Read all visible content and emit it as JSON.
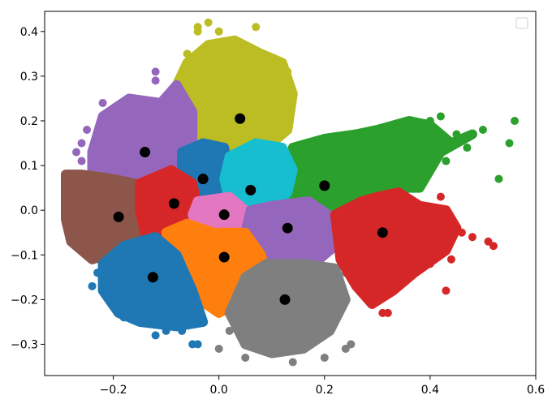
{
  "chart_data": {
    "type": "scatter",
    "title": "",
    "xlabel": "",
    "ylabel": "",
    "xlim": [
      -0.33,
      0.6
    ],
    "ylim": [
      -0.37,
      0.445
    ],
    "xticks": [
      -0.2,
      0.0,
      0.2,
      0.4,
      0.6
    ],
    "yticks": [
      -0.3,
      -0.2,
      -0.1,
      0.0,
      0.1,
      0.2,
      0.3,
      0.4
    ],
    "xtick_labels": [
      "−0.2",
      "0.0",
      "0.2",
      "0.4",
      "0.6"
    ],
    "ytick_labels": [
      "−0.3",
      "−0.2",
      "−0.1",
      "0.0",
      "0.1",
      "0.2",
      "0.3",
      "0.4"
    ],
    "grid": false,
    "legend": {
      "placement": "top-right",
      "entries": []
    },
    "centroid_color": "#000000",
    "clusters": [
      {
        "color": "#bcbd22",
        "centroid": [
          0.04,
          0.205
        ],
        "region": [
          [
            -0.08,
            0.28
          ],
          [
            -0.06,
            0.33
          ],
          [
            -0.02,
            0.37
          ],
          [
            0.03,
            0.38
          ],
          [
            0.08,
            0.35
          ],
          [
            0.12,
            0.33
          ],
          [
            0.14,
            0.26
          ],
          [
            0.13,
            0.18
          ],
          [
            0.09,
            0.14
          ],
          [
            0.03,
            0.13
          ],
          [
            -0.03,
            0.15
          ],
          [
            -0.08,
            0.21
          ]
        ],
        "outliers": [
          [
            -0.04,
            0.41
          ],
          [
            -0.04,
            0.4
          ],
          [
            -0.02,
            0.42
          ],
          [
            0.0,
            0.4
          ],
          [
            0.07,
            0.41
          ],
          [
            0.08,
            0.34
          ],
          [
            0.12,
            0.32
          ],
          [
            0.13,
            0.31
          ],
          [
            -0.06,
            0.35
          ],
          [
            -0.09,
            0.27
          ],
          [
            0.11,
            0.29
          ],
          [
            0.05,
            0.36
          ]
        ]
      },
      {
        "color": "#9467bd",
        "centroid": [
          -0.14,
          0.13
        ],
        "region": [
          [
            -0.24,
            0.13
          ],
          [
            -0.22,
            0.21
          ],
          [
            -0.17,
            0.25
          ],
          [
            -0.11,
            0.24
          ],
          [
            -0.08,
            0.28
          ],
          [
            -0.05,
            0.22
          ],
          [
            -0.05,
            0.16
          ],
          [
            -0.07,
            0.1
          ],
          [
            -0.13,
            0.08
          ],
          [
            -0.19,
            0.07
          ],
          [
            -0.24,
            0.08
          ]
        ],
        "outliers": [
          [
            -0.26,
            0.11
          ],
          [
            -0.27,
            0.13
          ],
          [
            -0.25,
            0.18
          ],
          [
            -0.12,
            0.31
          ],
          [
            -0.12,
            0.29
          ],
          [
            -0.2,
            0.2
          ],
          [
            -0.22,
            0.24
          ],
          [
            -0.26,
            0.15
          ]
        ]
      },
      {
        "color": "#2ca02c",
        "centroid": [
          0.2,
          0.055
        ],
        "region": [
          [
            0.14,
            0.14
          ],
          [
            0.2,
            0.16
          ],
          [
            0.26,
            0.17
          ],
          [
            0.3,
            0.18
          ],
          [
            0.36,
            0.2
          ],
          [
            0.4,
            0.19
          ],
          [
            0.44,
            0.15
          ],
          [
            0.48,
            0.17
          ],
          [
            0.42,
            0.13
          ],
          [
            0.38,
            0.05
          ],
          [
            0.33,
            0.05
          ],
          [
            0.28,
            0.03
          ],
          [
            0.24,
            -0.02
          ],
          [
            0.18,
            -0.03
          ],
          [
            0.14,
            0.0
          ],
          [
            0.13,
            0.06
          ]
        ],
        "outliers": [
          [
            0.56,
            0.2
          ],
          [
            0.55,
            0.15
          ],
          [
            0.53,
            0.07
          ],
          [
            0.42,
            0.21
          ],
          [
            0.4,
            0.2
          ],
          [
            0.45,
            0.17
          ],
          [
            0.5,
            0.18
          ],
          [
            0.47,
            0.14
          ],
          [
            0.43,
            0.11
          ]
        ]
      },
      {
        "color": "#1f77b4",
        "centroid": [
          -0.03,
          0.07
        ],
        "region": [
          [
            -0.07,
            0.13
          ],
          [
            -0.03,
            0.15
          ],
          [
            0.01,
            0.14
          ],
          [
            0.02,
            0.08
          ],
          [
            0.01,
            0.03
          ],
          [
            -0.04,
            0.02
          ],
          [
            -0.07,
            0.05
          ]
        ],
        "outliers": []
      },
      {
        "color": "#17becf",
        "centroid": [
          0.06,
          0.045
        ],
        "region": [
          [
            0.02,
            0.12
          ],
          [
            0.07,
            0.15
          ],
          [
            0.12,
            0.14
          ],
          [
            0.14,
            0.09
          ],
          [
            0.13,
            0.04
          ],
          [
            0.1,
            0.0
          ],
          [
            0.05,
            -0.01
          ],
          [
            0.02,
            0.02
          ],
          [
            0.01,
            0.07
          ]
        ],
        "outliers": []
      },
      {
        "color": "#8c564b",
        "centroid": [
          -0.19,
          -0.015
        ],
        "region": [
          [
            -0.29,
            0.08
          ],
          [
            -0.26,
            0.08
          ],
          [
            -0.2,
            0.07
          ],
          [
            -0.16,
            0.06
          ],
          [
            -0.15,
            0.0
          ],
          [
            -0.15,
            -0.06
          ],
          [
            -0.18,
            -0.09
          ],
          [
            -0.24,
            -0.11
          ],
          [
            -0.28,
            -0.07
          ],
          [
            -0.29,
            -0.02
          ]
        ],
        "outliers": [
          [
            -0.29,
            -0.03
          ],
          [
            -0.29,
            0.06
          ]
        ]
      },
      {
        "color": "#d62728",
        "centroid": [
          -0.085,
          0.015
        ],
        "region": [
          [
            -0.15,
            0.06
          ],
          [
            -0.09,
            0.09
          ],
          [
            -0.05,
            0.06
          ],
          [
            -0.04,
            0.0
          ],
          [
            -0.06,
            -0.04
          ],
          [
            -0.1,
            -0.06
          ],
          [
            -0.14,
            -0.05
          ],
          [
            -0.15,
            0.0
          ]
        ],
        "outliers": []
      },
      {
        "color": "#e377c2",
        "centroid": [
          0.01,
          -0.01
        ],
        "region": [
          [
            -0.04,
            0.02
          ],
          [
            0.02,
            0.03
          ],
          [
            0.05,
            0.0
          ],
          [
            0.05,
            -0.05
          ],
          [
            0.0,
            -0.05
          ],
          [
            -0.04,
            -0.04
          ],
          [
            -0.05,
            -0.01
          ]
        ],
        "outliers": []
      },
      {
        "color": "#9467bd",
        "centroid": [
          0.13,
          -0.04
        ],
        "region": [
          [
            0.06,
            0.0
          ],
          [
            0.1,
            0.01
          ],
          [
            0.17,
            0.02
          ],
          [
            0.22,
            -0.02
          ],
          [
            0.22,
            -0.08
          ],
          [
            0.18,
            -0.12
          ],
          [
            0.12,
            -0.12
          ],
          [
            0.07,
            -0.1
          ],
          [
            0.05,
            -0.05
          ]
        ],
        "outliers": []
      },
      {
        "color": "#ff7f0e",
        "centroid": [
          0.01,
          -0.105
        ],
        "region": [
          [
            -0.1,
            -0.05
          ],
          [
            -0.06,
            -0.03
          ],
          [
            -0.01,
            -0.05
          ],
          [
            0.05,
            -0.05
          ],
          [
            0.08,
            -0.1
          ],
          [
            0.09,
            -0.15
          ],
          [
            0.05,
            -0.2
          ],
          [
            0.0,
            -0.23
          ],
          [
            -0.05,
            -0.19
          ],
          [
            -0.08,
            -0.12
          ]
        ],
        "outliers": []
      },
      {
        "color": "#1f77b4",
        "centroid": [
          -0.125,
          -0.15
        ],
        "region": [
          [
            -0.22,
            -0.12
          ],
          [
            -0.18,
            -0.08
          ],
          [
            -0.12,
            -0.06
          ],
          [
            -0.08,
            -0.1
          ],
          [
            -0.05,
            -0.18
          ],
          [
            -0.03,
            -0.25
          ],
          [
            -0.08,
            -0.26
          ],
          [
            -0.15,
            -0.25
          ],
          [
            -0.19,
            -0.23
          ],
          [
            -0.22,
            -0.18
          ]
        ],
        "outliers": [
          [
            -0.24,
            -0.17
          ],
          [
            -0.23,
            -0.14
          ],
          [
            -0.12,
            -0.28
          ],
          [
            -0.1,
            -0.27
          ],
          [
            -0.07,
            -0.27
          ],
          [
            -0.05,
            -0.3
          ],
          [
            -0.04,
            -0.3
          ],
          [
            -0.18,
            -0.24
          ]
        ]
      },
      {
        "color": "#7f7f7f",
        "centroid": [
          0.125,
          -0.2
        ],
        "region": [
          [
            0.05,
            -0.15
          ],
          [
            0.09,
            -0.12
          ],
          [
            0.16,
            -0.12
          ],
          [
            0.22,
            -0.13
          ],
          [
            0.24,
            -0.2
          ],
          [
            0.21,
            -0.27
          ],
          [
            0.16,
            -0.31
          ],
          [
            0.1,
            -0.32
          ],
          [
            0.05,
            -0.3
          ],
          [
            0.02,
            -0.23
          ]
        ],
        "outliers": [
          [
            0.0,
            -0.31
          ],
          [
            0.05,
            -0.33
          ],
          [
            0.14,
            -0.34
          ],
          [
            0.2,
            -0.33
          ],
          [
            0.24,
            -0.31
          ],
          [
            0.25,
            -0.3
          ],
          [
            0.02,
            -0.27
          ],
          [
            0.26,
            -0.17
          ],
          [
            0.24,
            -0.14
          ]
        ]
      },
      {
        "color": "#d62728",
        "centroid": [
          0.31,
          -0.05
        ],
        "region": [
          [
            0.22,
            -0.01
          ],
          [
            0.27,
            0.02
          ],
          [
            0.3,
            0.03
          ],
          [
            0.34,
            0.04
          ],
          [
            0.38,
            0.01
          ],
          [
            0.43,
            0.0
          ],
          [
            0.45,
            -0.04
          ],
          [
            0.43,
            -0.09
          ],
          [
            0.37,
            -0.14
          ],
          [
            0.33,
            -0.18
          ],
          [
            0.29,
            -0.21
          ],
          [
            0.26,
            -0.17
          ],
          [
            0.23,
            -0.11
          ]
        ],
        "outliers": [
          [
            0.52,
            -0.08
          ],
          [
            0.51,
            -0.07
          ],
          [
            0.48,
            -0.06
          ],
          [
            0.46,
            -0.05
          ],
          [
            0.44,
            -0.11
          ],
          [
            0.43,
            -0.18
          ],
          [
            0.4,
            -0.12
          ],
          [
            0.32,
            -0.23
          ],
          [
            0.31,
            -0.23
          ],
          [
            0.42,
            0.03
          ]
        ]
      }
    ]
  }
}
